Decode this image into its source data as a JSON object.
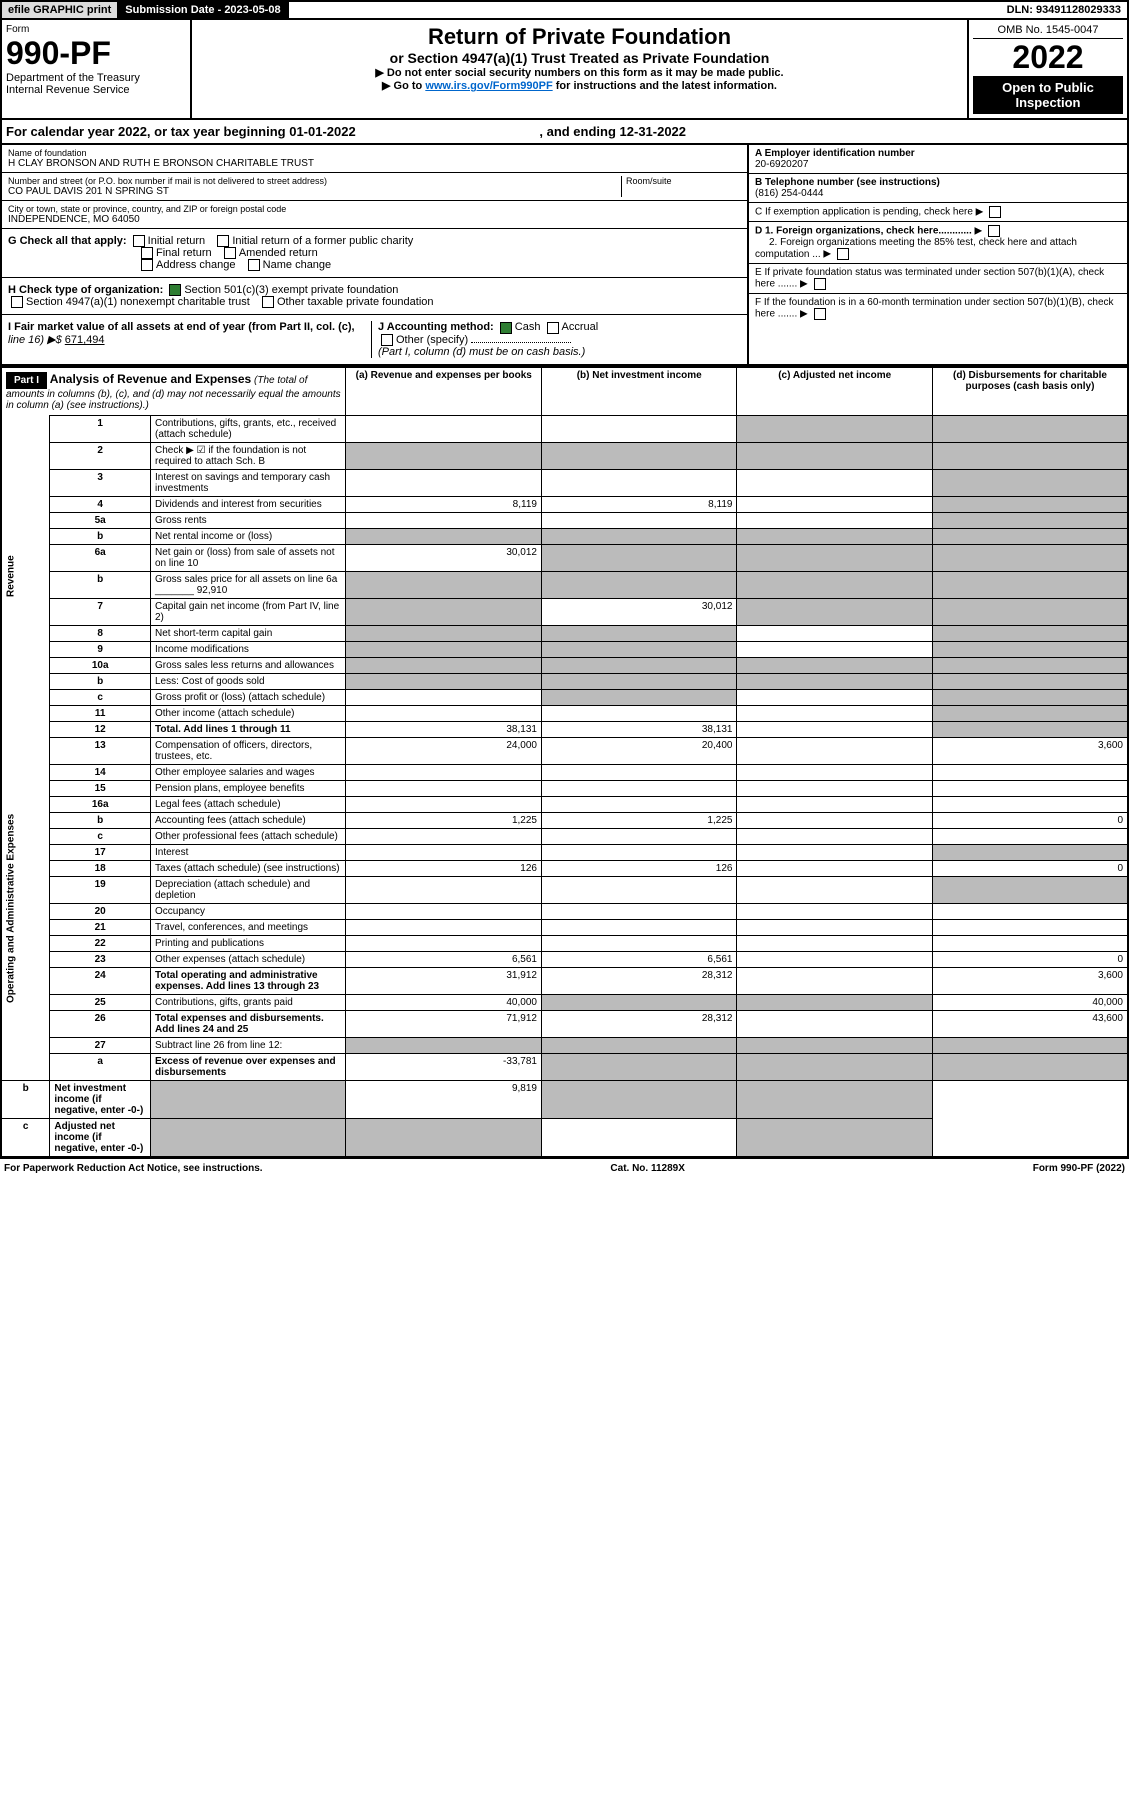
{
  "top": {
    "efile": "efile GRAPHIC print",
    "submission": "Submission Date - 2023-05-08",
    "dln": "DLN: 93491128029333"
  },
  "header": {
    "form_label": "Form",
    "form_number": "990-PF",
    "dept1": "Department of the Treasury",
    "dept2": "Internal Revenue Service",
    "title": "Return of Private Foundation",
    "subtitle": "or Section 4947(a)(1) Trust Treated as Private Foundation",
    "instr1": "▶ Do not enter social security numbers on this form as it may be made public.",
    "instr2_a": "▶ Go to ",
    "instr2_link": "www.irs.gov/Form990PF",
    "instr2_b": " for instructions and the latest information.",
    "omb": "OMB No. 1545-0047",
    "year": "2022",
    "open": "Open to Public Inspection"
  },
  "calyear": {
    "text_a": "For calendar year 2022, or tax year beginning 01-01-2022",
    "text_b": ", and ending 12-31-2022"
  },
  "info": {
    "name_label": "Name of foundation",
    "name": "H CLAY BRONSON AND RUTH E BRONSON CHARITABLE TRUST",
    "addr_label": "Number and street (or P.O. box number if mail is not delivered to street address)",
    "addr": "CO PAUL DAVIS 201 N SPRING ST",
    "room_label": "Room/suite",
    "city_label": "City or town, state or province, country, and ZIP or foreign postal code",
    "city": "INDEPENDENCE, MO  64050",
    "ein_label": "A Employer identification number",
    "ein": "20-6920207",
    "tel_label": "B Telephone number (see instructions)",
    "tel": "(816) 254-0444",
    "c_label": "C If exemption application is pending, check here",
    "d1": "D 1. Foreign organizations, check here............",
    "d2": "2. Foreign organizations meeting the 85% test, check here and attach computation ...",
    "e_label": "E   If private foundation status was terminated under section 507(b)(1)(A), check here .......",
    "f_label": "F   If the foundation is in a 60-month termination under section 507(b)(1)(B), check here .......",
    "g_label": "G Check all that apply:",
    "g_opts": [
      "Initial return",
      "Initial return of a former public charity",
      "Final return",
      "Amended return",
      "Address change",
      "Name change"
    ],
    "h_label": "H Check type of organization:",
    "h1": "Section 501(c)(3) exempt private foundation",
    "h2": "Section 4947(a)(1) nonexempt charitable trust",
    "h3": "Other taxable private foundation",
    "i_label": "I Fair market value of all assets at end of year (from Part II, col. (c),",
    "i_line": "line 16) ▶$",
    "i_val": "671,494",
    "j_label": "J Accounting method:",
    "j1": "Cash",
    "j2": "Accrual",
    "j3": "Other (specify)",
    "j_note": "(Part I, column (d) must be on cash basis.)"
  },
  "part1": {
    "label": "Part I",
    "title": "Analysis of Revenue and Expenses",
    "title_note": "(The total of amounts in columns (b), (c), and (d) may not necessarily equal the amounts in column (a) (see instructions).)",
    "col_a": "(a)   Revenue and expenses per books",
    "col_b": "(b)   Net investment income",
    "col_c": "(c)   Adjusted net income",
    "col_d": "(d)   Disbursements for charitable purposes (cash basis only)",
    "revenue_label": "Revenue",
    "expenses_label": "Operating and Administrative Expenses"
  },
  "rows": [
    {
      "n": "1",
      "desc": "Contributions, gifts, grants, etc., received (attach schedule)",
      "a": "",
      "b": "",
      "c": "shaded",
      "d": "shaded"
    },
    {
      "n": "2",
      "desc": "Check ▶ ☑ if the foundation is not required to attach Sch. B",
      "a": "shaded",
      "b": "shaded",
      "c": "shaded",
      "d": "shaded"
    },
    {
      "n": "3",
      "desc": "Interest on savings and temporary cash investments",
      "a": "",
      "b": "",
      "c": "",
      "d": "shaded"
    },
    {
      "n": "4",
      "desc": "Dividends and interest from securities",
      "a": "8,119",
      "b": "8,119",
      "c": "",
      "d": "shaded"
    },
    {
      "n": "5a",
      "desc": "Gross rents",
      "a": "",
      "b": "",
      "c": "",
      "d": "shaded"
    },
    {
      "n": "b",
      "desc": "Net rental income or (loss)",
      "a": "shaded",
      "b": "shaded",
      "c": "shaded",
      "d": "shaded"
    },
    {
      "n": "6a",
      "desc": "Net gain or (loss) from sale of assets not on line 10",
      "a": "30,012",
      "b": "shaded",
      "c": "shaded",
      "d": "shaded"
    },
    {
      "n": "b",
      "desc": "Gross sales price for all assets on line 6a _______ 92,910",
      "a": "shaded",
      "b": "shaded",
      "c": "shaded",
      "d": "shaded"
    },
    {
      "n": "7",
      "desc": "Capital gain net income (from Part IV, line 2)",
      "a": "shaded",
      "b": "30,012",
      "c": "shaded",
      "d": "shaded"
    },
    {
      "n": "8",
      "desc": "Net short-term capital gain",
      "a": "shaded",
      "b": "shaded",
      "c": "",
      "d": "shaded"
    },
    {
      "n": "9",
      "desc": "Income modifications",
      "a": "shaded",
      "b": "shaded",
      "c": "",
      "d": "shaded"
    },
    {
      "n": "10a",
      "desc": "Gross sales less returns and allowances",
      "a": "shaded",
      "b": "shaded",
      "c": "shaded",
      "d": "shaded"
    },
    {
      "n": "b",
      "desc": "Less: Cost of goods sold",
      "a": "shaded",
      "b": "shaded",
      "c": "shaded",
      "d": "shaded"
    },
    {
      "n": "c",
      "desc": "Gross profit or (loss) (attach schedule)",
      "a": "",
      "b": "shaded",
      "c": "",
      "d": "shaded"
    },
    {
      "n": "11",
      "desc": "Other income (attach schedule)",
      "a": "",
      "b": "",
      "c": "",
      "d": "shaded"
    },
    {
      "n": "12",
      "desc": "Total. Add lines 1 through 11",
      "a": "38,131",
      "b": "38,131",
      "c": "",
      "d": "shaded",
      "bold": true
    },
    {
      "n": "13",
      "desc": "Compensation of officers, directors, trustees, etc.",
      "a": "24,000",
      "b": "20,400",
      "c": "",
      "d": "3,600"
    },
    {
      "n": "14",
      "desc": "Other employee salaries and wages",
      "a": "",
      "b": "",
      "c": "",
      "d": ""
    },
    {
      "n": "15",
      "desc": "Pension plans, employee benefits",
      "a": "",
      "b": "",
      "c": "",
      "d": ""
    },
    {
      "n": "16a",
      "desc": "Legal fees (attach schedule)",
      "a": "",
      "b": "",
      "c": "",
      "d": ""
    },
    {
      "n": "b",
      "desc": "Accounting fees (attach schedule)",
      "a": "1,225",
      "b": "1,225",
      "c": "",
      "d": "0"
    },
    {
      "n": "c",
      "desc": "Other professional fees (attach schedule)",
      "a": "",
      "b": "",
      "c": "",
      "d": ""
    },
    {
      "n": "17",
      "desc": "Interest",
      "a": "",
      "b": "",
      "c": "",
      "d": "shaded"
    },
    {
      "n": "18",
      "desc": "Taxes (attach schedule) (see instructions)",
      "a": "126",
      "b": "126",
      "c": "",
      "d": "0"
    },
    {
      "n": "19",
      "desc": "Depreciation (attach schedule) and depletion",
      "a": "",
      "b": "",
      "c": "",
      "d": "shaded"
    },
    {
      "n": "20",
      "desc": "Occupancy",
      "a": "",
      "b": "",
      "c": "",
      "d": ""
    },
    {
      "n": "21",
      "desc": "Travel, conferences, and meetings",
      "a": "",
      "b": "",
      "c": "",
      "d": ""
    },
    {
      "n": "22",
      "desc": "Printing and publications",
      "a": "",
      "b": "",
      "c": "",
      "d": ""
    },
    {
      "n": "23",
      "desc": "Other expenses (attach schedule)",
      "a": "6,561",
      "b": "6,561",
      "c": "",
      "d": "0"
    },
    {
      "n": "24",
      "desc": "Total operating and administrative expenses. Add lines 13 through 23",
      "a": "31,912",
      "b": "28,312",
      "c": "",
      "d": "3,600",
      "bold": true
    },
    {
      "n": "25",
      "desc": "Contributions, gifts, grants paid",
      "a": "40,000",
      "b": "shaded",
      "c": "shaded",
      "d": "40,000"
    },
    {
      "n": "26",
      "desc": "Total expenses and disbursements. Add lines 24 and 25",
      "a": "71,912",
      "b": "28,312",
      "c": "",
      "d": "43,600",
      "bold": true
    },
    {
      "n": "27",
      "desc": "Subtract line 26 from line 12:",
      "a": "shaded",
      "b": "shaded",
      "c": "shaded",
      "d": "shaded"
    },
    {
      "n": "a",
      "desc": "Excess of revenue over expenses and disbursements",
      "a": "-33,781",
      "b": "shaded",
      "c": "shaded",
      "d": "shaded",
      "bold": true
    },
    {
      "n": "b",
      "desc": "Net investment income (if negative, enter -0-)",
      "a": "shaded",
      "b": "9,819",
      "c": "shaded",
      "d": "shaded",
      "bold": true
    },
    {
      "n": "c",
      "desc": "Adjusted net income (if negative, enter -0-)",
      "a": "shaded",
      "b": "shaded",
      "c": "",
      "d": "shaded",
      "bold": true
    }
  ],
  "footer": {
    "left": "For Paperwork Reduction Act Notice, see instructions.",
    "center": "Cat. No. 11289X",
    "right": "Form 990-PF (2022)"
  }
}
